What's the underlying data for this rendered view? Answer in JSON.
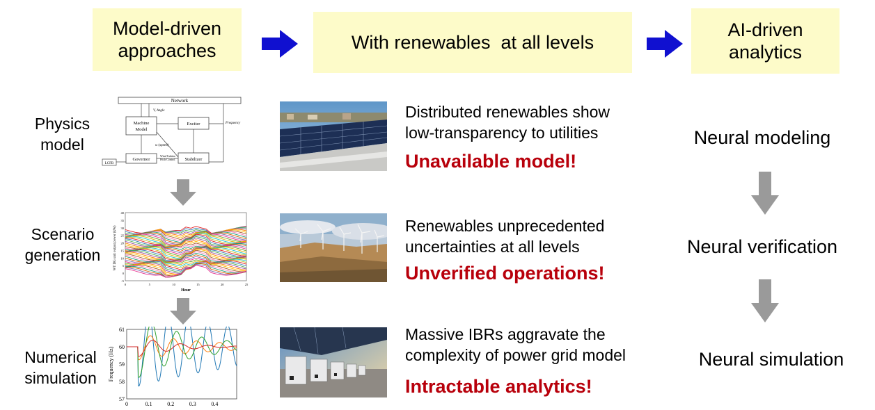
{
  "header": {
    "left_box": [
      "Model-driven",
      "approaches"
    ],
    "middle_box": "With renewables  at all levels",
    "right_box": [
      "AI-driven",
      "analytics"
    ]
  },
  "rows": [
    {
      "label": [
        "Physics",
        "model"
      ],
      "desc": [
        "Distributed renewables show",
        "low-transparency to utilities"
      ],
      "problem": "Unavailable model!",
      "neural": "Neural modeling"
    },
    {
      "label": [
        "Scenario",
        "generation"
      ],
      "desc": [
        "Renewables unprecedented",
        "uncertainties at all levels"
      ],
      "problem": "Unverified operations!",
      "neural": "Neural verification"
    },
    {
      "label": [
        "Numerical",
        "simulation"
      ],
      "desc": [
        "Massive IBRs aggravate the",
        "complexity of power grid model"
      ],
      "problem": "Intractable analytics!",
      "neural": "Neural simulation"
    }
  ],
  "block_diagram": {
    "network": "Network",
    "machine": [
      "Machine",
      "Model"
    ],
    "exciter": "Exciter",
    "governor": "Governor",
    "stabilizer": "Stabilizer",
    "lcfb": "LCFB",
    "omega_speed": "ω (speed)",
    "wind_turbine": [
      "Wind Turbine",
      "Pitch Control"
    ],
    "frequency": "Frequency",
    "v_angle": "V, Angle"
  },
  "scenario_chart": {
    "ylabel": "WT DG unit output power (kW)",
    "xlabel": "Hour",
    "yticks": [
      "40",
      "35",
      "30",
      "25",
      "20",
      "15",
      "10",
      "5",
      "0",
      "-5"
    ],
    "xticks": [
      "0",
      "5",
      "10",
      "15",
      "20",
      "25"
    ]
  },
  "sim_chart": {
    "ylabel": "Frequency (Hz)",
    "yticks": [
      "61",
      "60",
      "59",
      "58",
      "57"
    ],
    "xticks": [
      "0",
      "0.1",
      "0.2",
      "0.3",
      "0.4"
    ],
    "colors": [
      "#1f77b4",
      "#ff7f0e",
      "#2ca02c",
      "#d62728"
    ]
  },
  "colors": {
    "box_fill": "#fdfbc9",
    "arrow_blue": "#1010d0",
    "arrow_gray": "#9a9a9a",
    "problem_red": "#b8000b"
  }
}
